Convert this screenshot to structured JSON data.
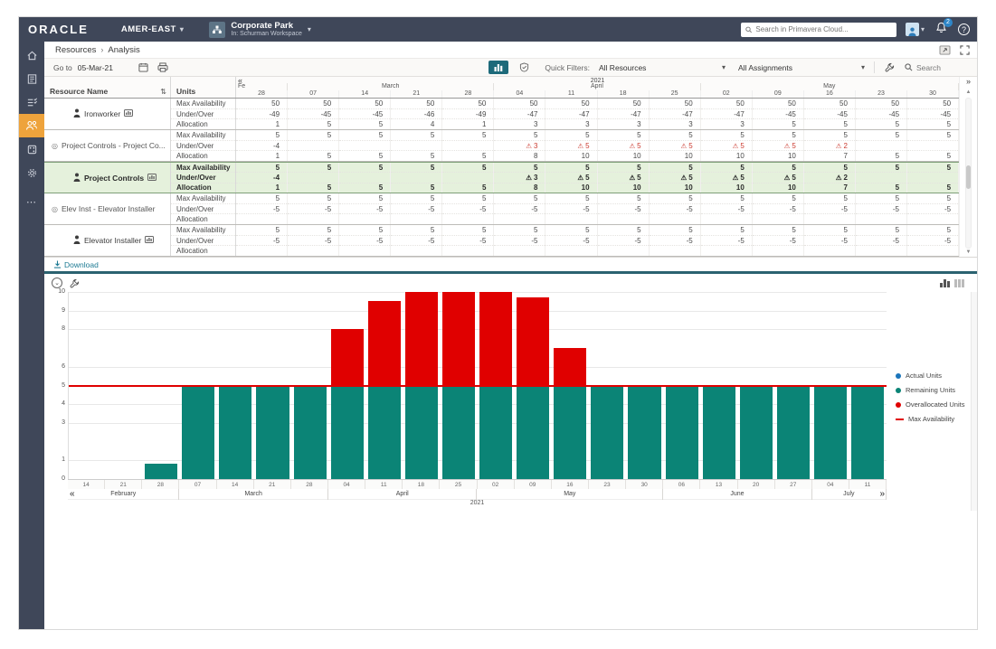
{
  "header": {
    "logo": "ORACLE",
    "org": "AMER-EAST",
    "workspace_name": "Corporate Park",
    "workspace_context": "In: Schurman Workspace",
    "search_placeholder": "Search in Primavera Cloud...",
    "notification_count": "2",
    "help_label": "?"
  },
  "sidebar": {
    "items": [
      {
        "icon": "home-icon",
        "active": false
      },
      {
        "icon": "portfolio-icon",
        "active": false
      },
      {
        "icon": "tasks-icon",
        "active": false
      },
      {
        "icon": "resources-icon",
        "active": true
      },
      {
        "icon": "risk-icon",
        "active": false
      },
      {
        "icon": "settings-icon",
        "active": false
      }
    ],
    "more_glyph": "⋯"
  },
  "breadcrumb": {
    "items": [
      "Resources",
      "Analysis"
    ],
    "separator": "›"
  },
  "toolbar": {
    "goto_label": "Go to",
    "goto_value": "05-Mar-21",
    "quick_filters_label": "Quick Filters:",
    "resources_filter": "All Resources",
    "assignments_filter": "All Assignments",
    "search_label": "Search"
  },
  "nav": {
    "prev": "«",
    "next": "»",
    "up": "▲",
    "down": "▼",
    "caret": "▾",
    "sort_glyph": "⇅",
    "warn_glyph": "⚠",
    "collapse_glyph": "⌄"
  },
  "table": {
    "resource_col": "Resource Name",
    "units_col": "Units",
    "year": "2021",
    "metric_labels": [
      "Max Availability",
      "Under/Over",
      "Allocation"
    ],
    "month_groups": [
      {
        "label": "Fe",
        "span": 1
      },
      {
        "label": "March",
        "span": 4
      },
      {
        "label": "April",
        "span": 4
      },
      {
        "label": "May",
        "span": 5
      }
    ],
    "columns": [
      "28",
      "07",
      "14",
      "21",
      "28",
      "04",
      "11",
      "18",
      "25",
      "02",
      "09",
      "16",
      "23",
      "30"
    ],
    "resources": [
      {
        "name": "Ironworker",
        "kind": "resource",
        "badge": true,
        "highlight": false,
        "max": [
          "50",
          "50",
          "50",
          "50",
          "50",
          "50",
          "50",
          "50",
          "50",
          "50",
          "50",
          "50",
          "50",
          "50"
        ],
        "under": [
          "-49",
          "-45",
          "-45",
          "-46",
          "-49",
          "-47",
          "-47",
          "-47",
          "-47",
          "-47",
          "-45",
          "-45",
          "-45",
          "-45"
        ],
        "alloc": [
          "1",
          "5",
          "5",
          "4",
          "1",
          "3",
          "3",
          "3",
          "3",
          "3",
          "5",
          "5",
          "5",
          "5"
        ]
      },
      {
        "name": "Project Controls - Project Co...",
        "kind": "role",
        "badge": false,
        "highlight": false,
        "max": [
          "5",
          "5",
          "5",
          "5",
          "5",
          "5",
          "5",
          "5",
          "5",
          "5",
          "5",
          "5",
          "5",
          "5"
        ],
        "under": [
          "-4",
          "",
          "",
          "",
          "",
          "⚠3",
          "⚠5",
          "⚠5",
          "⚠5",
          "⚠5",
          "⚠5",
          "⚠2",
          "",
          ""
        ],
        "alloc": [
          "1",
          "5",
          "5",
          "5",
          "5",
          "8",
          "10",
          "10",
          "10",
          "10",
          "10",
          "7",
          "5",
          "5"
        ]
      },
      {
        "name": "Project Controls",
        "kind": "resource",
        "badge": true,
        "highlight": true,
        "max": [
          "5",
          "5",
          "5",
          "5",
          "5",
          "5",
          "5",
          "5",
          "5",
          "5",
          "5",
          "5",
          "5",
          "5"
        ],
        "under": [
          "-4",
          "",
          "",
          "",
          "",
          "⚠3",
          "⚠5",
          "⚠5",
          "⚠5",
          "⚠5",
          "⚠5",
          "⚠2",
          "",
          ""
        ],
        "alloc": [
          "1",
          "5",
          "5",
          "5",
          "5",
          "8",
          "10",
          "10",
          "10",
          "10",
          "10",
          "7",
          "5",
          "5"
        ]
      },
      {
        "name": "Elev Inst - Elevator Installer",
        "kind": "role",
        "badge": false,
        "highlight": false,
        "max": [
          "5",
          "5",
          "5",
          "5",
          "5",
          "5",
          "5",
          "5",
          "5",
          "5",
          "5",
          "5",
          "5",
          "5"
        ],
        "under": [
          "-5",
          "-5",
          "-5",
          "-5",
          "-5",
          "-5",
          "-5",
          "-5",
          "-5",
          "-5",
          "-5",
          "-5",
          "-5",
          "-5"
        ],
        "alloc": [
          "",
          "",
          "",
          "",
          "",
          "",
          "",
          "",
          "",
          "",
          "",
          "",
          "",
          ""
        ]
      },
      {
        "name": "Elevator Installer",
        "kind": "resource",
        "badge": true,
        "highlight": false,
        "max": [
          "5",
          "5",
          "5",
          "5",
          "5",
          "5",
          "5",
          "5",
          "5",
          "5",
          "5",
          "5",
          "5",
          "5"
        ],
        "under": [
          "-5",
          "-5",
          "-5",
          "-5",
          "-5",
          "-5",
          "-5",
          "-5",
          "-5",
          "-5",
          "-5",
          "-5",
          "-5",
          "-5"
        ],
        "alloc": [
          "",
          "",
          "",
          "",
          "",
          "",
          "",
          "",
          "",
          "",
          "",
          "",
          "",
          ""
        ]
      }
    ]
  },
  "download_label": "Download",
  "chart_data": {
    "type": "bar",
    "title": "",
    "year": "2021",
    "ylim": [
      0,
      10
    ],
    "yticks": [
      10,
      9,
      8,
      6,
      5,
      4,
      3,
      1,
      0
    ],
    "gridline_ticks": [
      10,
      9,
      8,
      6,
      4,
      3,
      1
    ],
    "max_availability": 5,
    "x": [
      "Feb 14",
      "Feb 21",
      "Feb 28",
      "Mar 07",
      "Mar 14",
      "Mar 21",
      "Mar 28",
      "Apr 04",
      "Apr 11",
      "Apr 18",
      "Apr 25",
      "May 02",
      "May 09",
      "May 16",
      "May 23",
      "May 30",
      "Jun 06",
      "Jun 13",
      "Jun 20",
      "Jun 27",
      "Jul 04",
      "Jul 11"
    ],
    "day_ticks": [
      "14",
      "21",
      "28",
      "07",
      "14",
      "21",
      "28",
      "04",
      "11",
      "18",
      "25",
      "02",
      "09",
      "16",
      "23",
      "30",
      "06",
      "13",
      "20",
      "27",
      "04",
      "11"
    ],
    "month_groups": [
      {
        "label": "February",
        "span": 3
      },
      {
        "label": "March",
        "span": 4
      },
      {
        "label": "April",
        "span": 4
      },
      {
        "label": "May",
        "span": 5
      },
      {
        "label": "June",
        "span": 4
      },
      {
        "label": "July",
        "span": 2
      }
    ],
    "series": [
      {
        "name": "Actual Units",
        "color": "#1b75bb",
        "values": [
          0,
          0,
          0,
          0,
          0,
          0,
          0,
          0,
          0,
          0,
          0,
          0,
          0,
          0,
          0,
          0,
          0,
          0,
          0,
          0,
          0,
          0
        ]
      },
      {
        "name": "Remaining Units",
        "color": "#0b8476",
        "values": [
          0,
          0,
          0.8,
          5,
          5,
          5,
          5,
          5,
          5,
          5,
          5,
          5,
          5,
          5,
          5,
          5,
          5,
          5,
          5,
          5,
          5,
          5
        ]
      },
      {
        "name": "Overallocated Units",
        "color": "#e00000",
        "values": [
          0,
          0,
          0,
          0,
          0,
          0,
          0,
          3,
          4.5,
          5,
          5,
          5,
          4.7,
          2,
          0,
          0,
          0,
          0,
          0,
          0,
          0,
          0
        ]
      }
    ],
    "legend_items": [
      {
        "label": "Actual Units",
        "color": "#1b75bb",
        "type": "dot"
      },
      {
        "label": "Remaining Units",
        "color": "#0b8476",
        "type": "dot"
      },
      {
        "label": "Overallocated Units",
        "color": "#e00000",
        "type": "dot"
      },
      {
        "label": "Max Availability",
        "color": "#e00000",
        "type": "line"
      }
    ],
    "legend_position": "right"
  }
}
